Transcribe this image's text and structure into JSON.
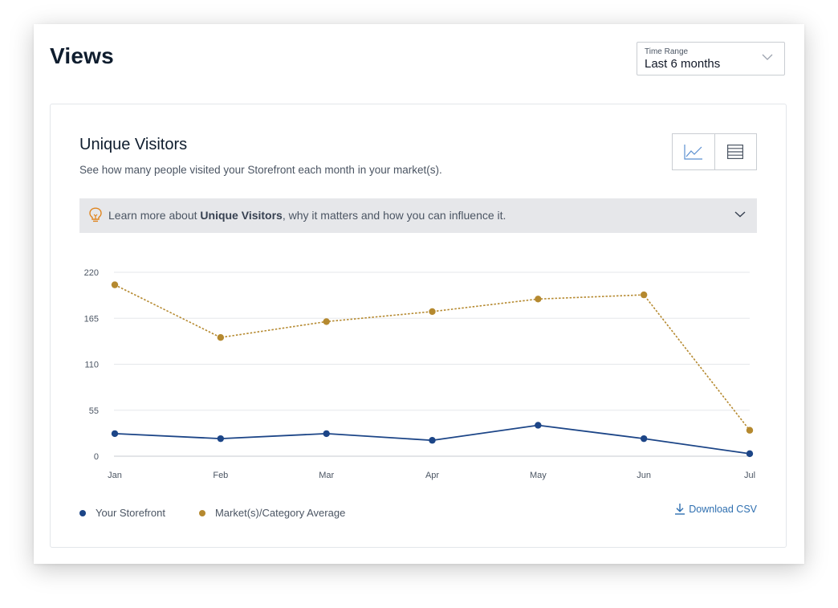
{
  "page": {
    "title": "Views"
  },
  "time_range": {
    "label": "Time Range",
    "value": "Last 6 months"
  },
  "card": {
    "title": "Unique Visitors",
    "subtitle": "See how many people visited your Storefront each month in your market(s)."
  },
  "learn": {
    "prefix": "Learn more about ",
    "bold": "Unique Visitors",
    "suffix": ", why it matters and how you can influence it."
  },
  "legend": {
    "series1": "Your Storefront",
    "series2": "Market(s)/Category Average"
  },
  "download": {
    "label": "Download CSV"
  },
  "colors": {
    "storefront": "#1c4587",
    "average": "#b5892f",
    "grid": "#e5e7eb",
    "link": "#2e6fb0"
  },
  "icons": {
    "time_range": "chevron-down-icon",
    "chart_view": "line-chart-icon",
    "table_view": "table-icon",
    "learn": "lightbulb-icon",
    "learn_toggle": "chevron-down-icon",
    "download": "download-icon"
  },
  "chart_data": {
    "type": "line",
    "categories": [
      "Jan",
      "Feb",
      "Mar",
      "Apr",
      "May",
      "Jun",
      "Jul"
    ],
    "yticks": [
      0,
      55,
      110,
      165,
      220
    ],
    "ylim": [
      0,
      220
    ],
    "grid": true,
    "legend_position": "bottom-left",
    "series": [
      {
        "name": "Your Storefront",
        "values": [
          27,
          21,
          27,
          19,
          37,
          21,
          3
        ],
        "style": "solid"
      },
      {
        "name": "Market(s)/Category Average",
        "values": [
          205,
          142,
          161,
          173,
          188,
          193,
          31
        ],
        "style": "dotted"
      }
    ]
  }
}
